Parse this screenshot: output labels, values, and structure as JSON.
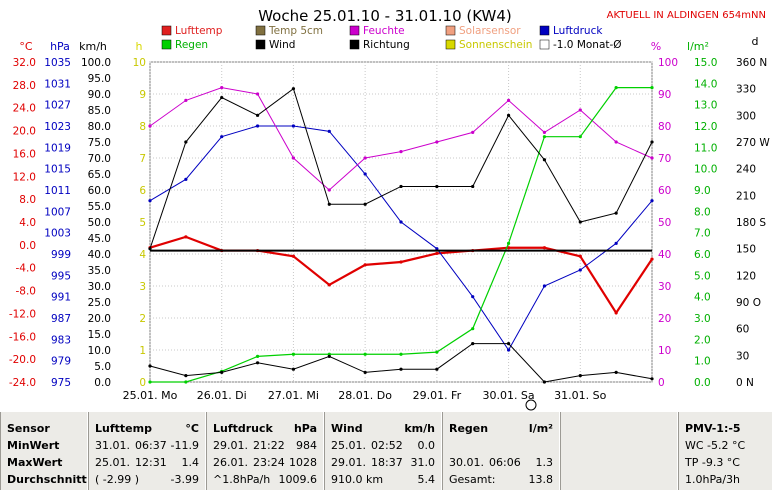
{
  "header": {
    "title": "Woche 25.01.10 - 31.01.10 (KW4)",
    "live_link": "AKTUELL IN ALDINGEN 654mNN"
  },
  "colors": {
    "temp": "#e00000",
    "pressure": "#0000c0",
    "wind": "#000000",
    "humidity": "#cc00cc",
    "rain": "#00d000",
    "solar": "#f0a080",
    "sunshine": "#d8d800",
    "ground": "#807040",
    "grid": "#a0a0a0"
  },
  "legend": [
    {
      "label": "Lufttemp",
      "color": "#e02020"
    },
    {
      "label": "Temp 5cm",
      "color": "#807040"
    },
    {
      "label": "Feuchte",
      "color": "#cc00cc"
    },
    {
      "label": "Solarsensor",
      "color": "#f0a080"
    },
    {
      "label": "Luftdruck",
      "color": "#0000c0"
    },
    {
      "label": "Regen",
      "color": "#00d000"
    },
    {
      "label": "Wind",
      "color": "#000000"
    },
    {
      "label": "Richtung",
      "color": "#000000"
    },
    {
      "label": "Sonnenschein",
      "color": "#d8d800"
    },
    {
      "label": "-1.0 Monat-Ø",
      "color": "#ffffff"
    }
  ],
  "axes": {
    "temp_unit": "°C",
    "hpa_unit": "hPa",
    "kmh_unit": "km/h",
    "h_unit": "h",
    "pct_unit": "%",
    "lm2_unit": "l/m²",
    "dir_unit": "d",
    "temp_ticks": [
      "32.0",
      "28.0",
      "24.0",
      "20.0",
      "16.0",
      "12.0",
      "8.0",
      "4.0",
      "0.0",
      "-4.0",
      "-8.0",
      "-12.0",
      "-16.0",
      "-20.0",
      "-24.0"
    ],
    "hpa_ticks": [
      "1035",
      "1031",
      "1027",
      "1023",
      "1019",
      "1015",
      "1011",
      "1007",
      "1003",
      "999",
      "995",
      "991",
      "987",
      "983",
      "979",
      "975"
    ],
    "kmh_ticks": [
      "100.0",
      "95.0",
      "90.0",
      "85.0",
      "80.0",
      "75.0",
      "70.0",
      "65.0",
      "60.0",
      "55.0",
      "50.0",
      "45.0",
      "40.0",
      "35.0",
      "30.0",
      "25.0",
      "20.0",
      "15.0",
      "10.0",
      "5.0",
      "0.0"
    ],
    "h_ticks": [
      "10",
      "9",
      "8",
      "7",
      "6",
      "5",
      "4",
      "3",
      "2",
      "1",
      "0"
    ],
    "pct_ticks": [
      "100",
      "90",
      "80",
      "70",
      "60",
      "50",
      "40",
      "30",
      "20",
      "10",
      "0"
    ],
    "lm2_ticks": [
      "15.0",
      "14.0",
      "13.0",
      "12.0",
      "11.0",
      "10.0",
      "9.0",
      "8.0",
      "7.0",
      "6.0",
      "5.0",
      "4.0",
      "3.0",
      "2.0",
      "1.0",
      "0.0"
    ],
    "dir_ticks": [
      "360 N",
      "330",
      "300",
      "270 W",
      "240",
      "210",
      "180 S",
      "150",
      "120",
      "90 O",
      "60",
      "30",
      "0 N"
    ],
    "day_labels": [
      "25.01. Mo",
      "26.01. Di",
      "27.01. Mi",
      "28.01. Do",
      "29.01. Fr",
      "30.01. Sa",
      "31.01. So"
    ]
  },
  "chart_data": {
    "type": "line",
    "title": "Woche 25.01.10 - 31.01.10 (KW4)",
    "x": [
      "25.01. 00:00",
      "25.01. 12:00",
      "26.01. 00:00",
      "26.01. 12:00",
      "27.01. 00:00",
      "27.01. 12:00",
      "28.01. 00:00",
      "28.01. 12:00",
      "29.01. 00:00",
      "29.01. 12:00",
      "30.01. 00:00",
      "30.01. 12:00",
      "31.01. 00:00",
      "31.01. 12:00",
      "01.02. 00:00"
    ],
    "series": [
      {
        "name": "Lufttemp",
        "unit": "°C",
        "values": [
          -0.5,
          1.4,
          -1.0,
          -1.0,
          -2.0,
          -7.0,
          -3.5,
          -3.0,
          -1.5,
          -1.0,
          -0.5,
          -0.5,
          -2.0,
          -11.9,
          -2.5
        ]
      },
      {
        "name": "Luftdruck",
        "unit": "hPa",
        "values": [
          1009,
          1013,
          1021,
          1023,
          1023,
          1022,
          1014,
          1005,
          1000,
          991,
          981,
          993,
          996,
          1001,
          1009
        ]
      },
      {
        "name": "Feuchte",
        "unit": "%",
        "values": [
          80,
          88,
          92,
          90,
          70,
          60,
          70,
          72,
          75,
          78,
          88,
          78,
          85,
          75,
          70
        ]
      },
      {
        "name": "Regen",
        "unit": "l/m²",
        "values": [
          0.0,
          0.0,
          0.5,
          1.2,
          1.3,
          1.3,
          1.3,
          1.3,
          1.4,
          2.5,
          6.5,
          11.5,
          11.5,
          13.8,
          13.8
        ]
      },
      {
        "name": "Wind",
        "unit": "km/h",
        "values": [
          5,
          2,
          3,
          6,
          4,
          8,
          3,
          4,
          4,
          12,
          12,
          0,
          2,
          3,
          1
        ]
      },
      {
        "name": "Richtung",
        "unit": "°",
        "values": [
          150,
          270,
          320,
          300,
          330,
          200,
          200,
          220,
          220,
          220,
          300,
          250,
          180,
          190,
          270
        ]
      }
    ],
    "monthly_mean_temp": -1.0,
    "ylim_temp": [
      -24,
      32
    ],
    "ylim_pressure": [
      975,
      1035
    ],
    "ylim_wind": [
      0,
      100
    ],
    "grid": true,
    "legend_position": "top"
  },
  "table": {
    "sensor_col": {
      "title": "Sensor",
      "rows": [
        "MinWert",
        "MaxWert",
        "Durchschnitt"
      ]
    },
    "temp_col": {
      "title": "Lufttemp",
      "unit": "°C",
      "rows": [
        [
          "31.01.",
          "06:37",
          "-11.9"
        ],
        [
          "25.01.",
          "12:31",
          "1.4"
        ],
        [
          "( -2.99 )",
          "",
          "-3.99"
        ]
      ]
    },
    "press_col": {
      "title": "Luftdruck",
      "unit": "hPa",
      "rows": [
        [
          "29.01.",
          "21:22",
          "984"
        ],
        [
          "26.01.",
          "23:24",
          "1028"
        ],
        [
          "^1.8hPa/h",
          "",
          "1009.6"
        ]
      ]
    },
    "wind_col": {
      "title": "Wind",
      "unit": "km/h",
      "rows": [
        [
          "25.01.",
          "02:52",
          "0.0"
        ],
        [
          "29.01.",
          "18:37",
          "31.0"
        ],
        [
          "910.0 km",
          "",
          "5.4"
        ]
      ]
    },
    "rain_col": {
      "title": "Regen",
      "unit": "l/m²",
      "rows": [
        [
          "30.01.",
          "06:06",
          "1.3"
        ],
        [
          "Gesamt:",
          "",
          "13.8"
        ]
      ]
    },
    "pmv_col": {
      "title": "PMV-1:-5",
      "rows": [
        "WC -5.2 °C",
        "TP -9.3 °C",
        "1.0hPa/3h"
      ]
    }
  }
}
